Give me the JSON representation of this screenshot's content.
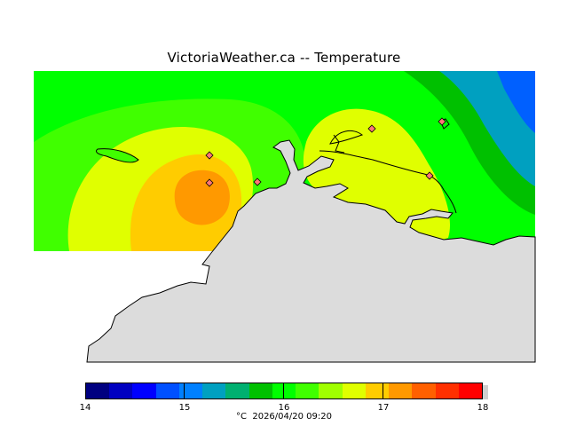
{
  "title": "VictoriaWeather.ca -- Temperature",
  "map": {
    "land_color": "#dcdcdc",
    "coast_color": "#000000",
    "station_color": "#ff7777",
    "field_colors": {
      "t15_25": "#0060ff",
      "t15_75": "#00a0c0",
      "t16_0": "#00c000",
      "t16_25": "#00ff00",
      "t16_5": "#40ff00",
      "t16_75": "#e0ff00",
      "t17_0": "#ffcc00",
      "t17_25": "#ff9900"
    }
  },
  "legend": {
    "colors": [
      "#000080",
      "#0000c0",
      "#0000ff",
      "#0050ff",
      "#0080ff",
      "#00a0c0",
      "#00b070",
      "#00c000",
      "#00ff00",
      "#40ff00",
      "#a0ff00",
      "#e0ff00",
      "#ffcc00",
      "#ff9900",
      "#ff6000",
      "#ff3000",
      "#ff0000"
    ],
    "ticks": [
      "14",
      "15",
      "16",
      "17",
      "18"
    ],
    "unit": "°C",
    "timestamp": "2026/04/20 09:20"
  }
}
